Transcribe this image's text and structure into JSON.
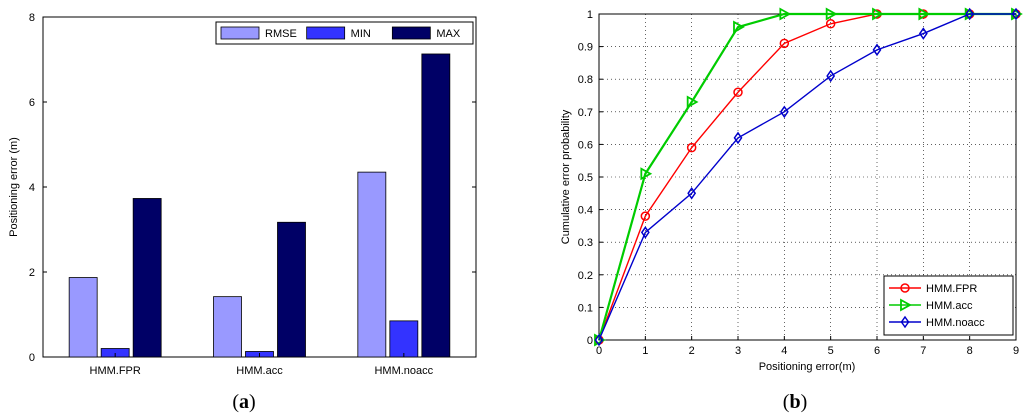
{
  "panels": {
    "a": {
      "open": "(",
      "letter": "a",
      "close": ")"
    },
    "b": {
      "open": "(",
      "letter": "b",
      "close": ")"
    }
  },
  "chart_data": [
    {
      "type": "bar",
      "categories": [
        "HMM.FPR",
        "HMM.acc",
        "HMM.noacc"
      ],
      "series": [
        {
          "name": "RMSE",
          "values": [
            1.87,
            1.42,
            4.35
          ],
          "color": "#9999ff"
        },
        {
          "name": "MIN",
          "values": [
            0.2,
            0.13,
            0.85
          ],
          "color": "#3333ff"
        },
        {
          "name": "MAX",
          "values": [
            3.73,
            3.17,
            7.13
          ],
          "color": "#000066"
        }
      ],
      "ylabel": "Positioning error (m)",
      "xlabel": "",
      "ylim": [
        0,
        8
      ],
      "yticks": [
        "0",
        "2",
        "4",
        "6",
        "8"
      ],
      "grid": false,
      "legend": "top-right, horizontal"
    },
    {
      "type": "line",
      "x": [
        0,
        1,
        2,
        3,
        4,
        5,
        6,
        7,
        8,
        9
      ],
      "series": [
        {
          "name": "HMM.FPR",
          "values": [
            0,
            0.38,
            0.59,
            0.76,
            0.91,
            0.97,
            1,
            1,
            1,
            1
          ],
          "color": "#ff0000",
          "marker": "circle"
        },
        {
          "name": "HMM.acc",
          "values": [
            0,
            0.51,
            0.73,
            0.96,
            1,
            1,
            1,
            1,
            1,
            1
          ],
          "color": "#00cc00",
          "marker": "triangle-right"
        },
        {
          "name": "HMM.noacc",
          "values": [
            0,
            0.33,
            0.45,
            0.62,
            0.7,
            0.81,
            0.89,
            0.94,
            1,
            1
          ],
          "color": "#0000cc",
          "marker": "diamond"
        }
      ],
      "xlabel": "Positioning error(m)",
      "ylabel": "Cumulative error probability",
      "xlim": [
        0,
        9
      ],
      "ylim": [
        0,
        1
      ],
      "xticks": [
        "0",
        "1",
        "2",
        "3",
        "4",
        "5",
        "6",
        "7",
        "8",
        "9"
      ],
      "yticks": [
        "0",
        "0.1",
        "0.2",
        "0.3",
        "0.4",
        "0.5",
        "0.6",
        "0.7",
        "0.8",
        "0.9",
        "1"
      ],
      "grid": true,
      "legend": "bottom-right"
    }
  ]
}
